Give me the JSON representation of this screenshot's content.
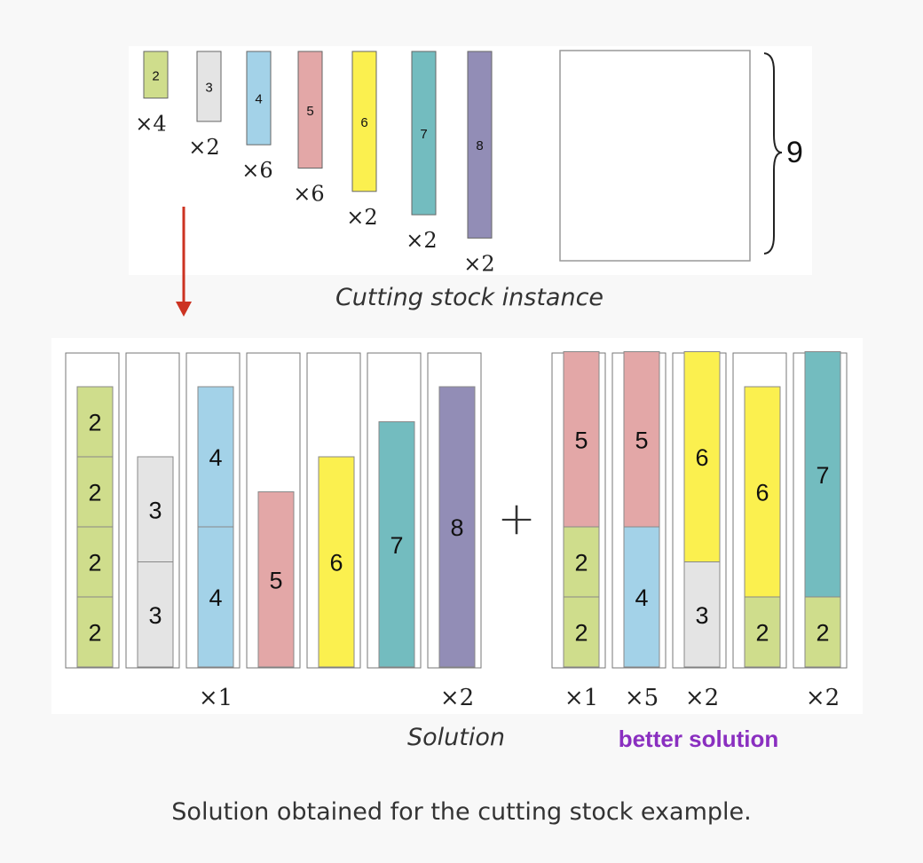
{
  "colors": {
    "piece_2": "#cfdd8c",
    "piece_3": "#e4e4e4",
    "piece_4": "#a3d2e8",
    "piece_5": "#e3a7a7",
    "piece_6": "#fbf04f",
    "piece_7": "#73bcbf",
    "piece_8": "#928db6",
    "arrow": "#cc3322",
    "better_label": "#8a2fc0",
    "panel": "#ffffff",
    "page": "#f8f8f8"
  },
  "instance": {
    "pieces": [
      {
        "length": "2",
        "multiplier": "×4"
      },
      {
        "length": "3",
        "multiplier": "×2"
      },
      {
        "length": "4",
        "multiplier": "×6"
      },
      {
        "length": "5",
        "multiplier": "×6"
      },
      {
        "length": "6",
        "multiplier": "×2"
      },
      {
        "length": "7",
        "multiplier": "×2"
      },
      {
        "length": "8",
        "multiplier": "×2"
      }
    ],
    "stock_length": "9",
    "title": "Cutting stock instance"
  },
  "solution": {
    "patterns": [
      {
        "pieces": [
          "2",
          "2",
          "2",
          "2"
        ],
        "multiplier": ""
      },
      {
        "pieces": [
          "3",
          "3"
        ],
        "multiplier": ""
      },
      {
        "pieces": [
          "4",
          "4"
        ],
        "multiplier": "×1"
      },
      {
        "pieces": [
          "5"
        ],
        "multiplier": ""
      },
      {
        "pieces": [
          "6"
        ],
        "multiplier": ""
      },
      {
        "pieces": [
          "7"
        ],
        "multiplier": ""
      },
      {
        "pieces": [
          "8"
        ],
        "multiplier": "×2"
      }
    ],
    "label": "Solution"
  },
  "plus_sign": "+",
  "better_solution": {
    "patterns": [
      {
        "pieces": [
          "5",
          "2",
          "2"
        ],
        "multiplier": "×1"
      },
      {
        "pieces": [
          "5",
          "4"
        ],
        "multiplier": "×5"
      },
      {
        "pieces": [
          "6",
          "3"
        ],
        "multiplier": "×2"
      },
      {
        "pieces": [
          "6",
          "2"
        ],
        "multiplier": ""
      },
      {
        "pieces": [
          "7",
          "2"
        ],
        "multiplier": "×2"
      }
    ],
    "label": "better solution"
  },
  "caption": "Solution obtained for the cutting stock example."
}
